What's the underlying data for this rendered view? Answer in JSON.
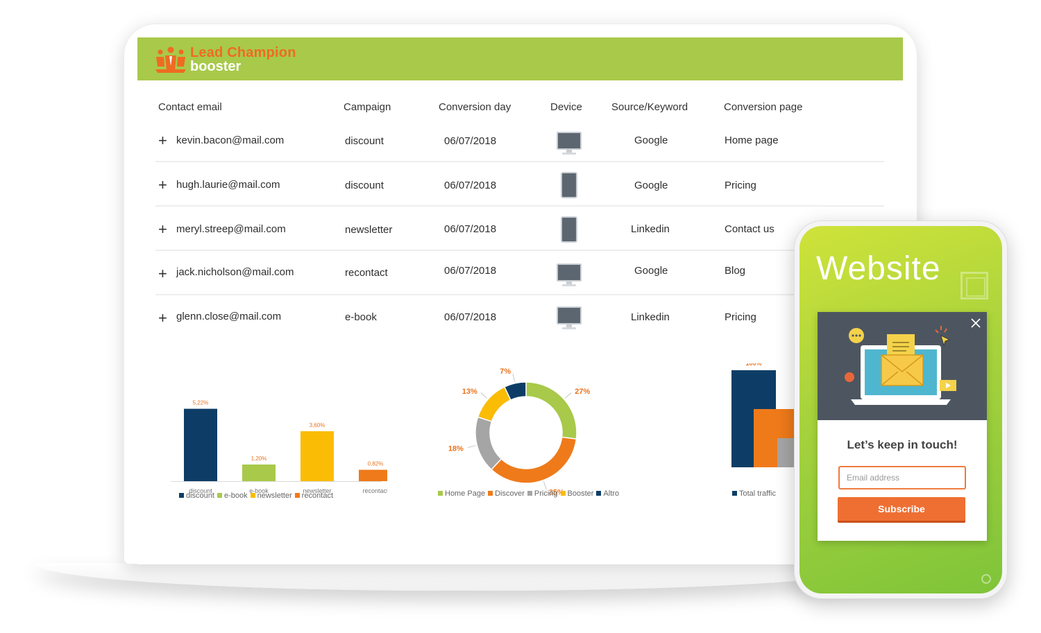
{
  "header": {
    "brand_line1": "Lead  Champion",
    "brand_line2": "booster"
  },
  "table": {
    "columns": [
      "Contact email",
      "Campaign",
      "Conversion day",
      "Device",
      "Source/Keyword",
      "Conversion page"
    ],
    "rows": [
      {
        "email": "kevin.bacon@mail.com",
        "campaign": "discount",
        "day": "06/07/2018",
        "device": "desktop-icon",
        "source": "Google",
        "page": "Home page"
      },
      {
        "email": "hugh.laurie@mail.com",
        "campaign": "discount",
        "day": "06/07/2018",
        "device": "tablet-icon",
        "source": "Google",
        "page": "Pricing"
      },
      {
        "email": "meryl.streep@mail.com",
        "campaign": "newsletter",
        "day": "06/07/2018",
        "device": "tablet-icon",
        "source": "Linkedin",
        "page": "Contact us"
      },
      {
        "email": "jack.nicholson@mail.com",
        "campaign": "recontact",
        "day": "06/07/2018",
        "device": "desktop-icon",
        "source": "Google",
        "page": "Blog"
      },
      {
        "email": "glenn.close@mail.com",
        "campaign": "e-book",
        "day": "06/07/2018",
        "device": "desktop-icon",
        "source": "Linkedin",
        "page": "Pricing"
      }
    ]
  },
  "chart_data": [
    {
      "type": "bar",
      "categories": [
        "discount",
        "e-book",
        "newsletter",
        "recontact"
      ],
      "values": [
        5.22,
        1.2,
        3.6,
        0.82
      ],
      "labels": [
        "5,22%",
        "1,20%",
        "3,60%",
        "0,82%"
      ],
      "colors": [
        "#0d3d66",
        "#a8c94a",
        "#fbbc05",
        "#ef7a1a"
      ],
      "label_color": "#e8731e",
      "ylim": [
        0,
        6
      ],
      "legend": [
        "discount",
        "e-book",
        "newsletter",
        "recontact"
      ],
      "legend_position": "bottom"
    },
    {
      "type": "pie",
      "donut": true,
      "categories": [
        "Home Page",
        "Discover",
        "Pricing",
        "Booster",
        "Altro"
      ],
      "values": [
        27,
        35,
        18,
        13,
        7
      ],
      "labels": [
        "27%",
        "35%",
        "18%",
        "13%",
        "7%"
      ],
      "colors": [
        "#a8c94a",
        "#ef7a1a",
        "#a5a5a5",
        "#fbbc05",
        "#0d3d66"
      ],
      "label_color": "#e8731e",
      "legend_position": "bottom"
    },
    {
      "type": "bar",
      "categories": [
        "Total traffic"
      ],
      "values": [
        100
      ],
      "labels": [
        "100%"
      ],
      "colors": [
        "#0d3d66",
        "#ef7a1a",
        "#a5a5a5"
      ],
      "label_color": "#e8731e",
      "ylim": [
        0,
        110
      ],
      "legend": [
        "Total traffic"
      ],
      "legend_position": "bottom"
    }
  ],
  "phone": {
    "title": "Website",
    "popup": {
      "heading": "Let’s keep in touch!",
      "email_placeholder": "Email address",
      "subscribe_label": "Subscribe"
    }
  }
}
